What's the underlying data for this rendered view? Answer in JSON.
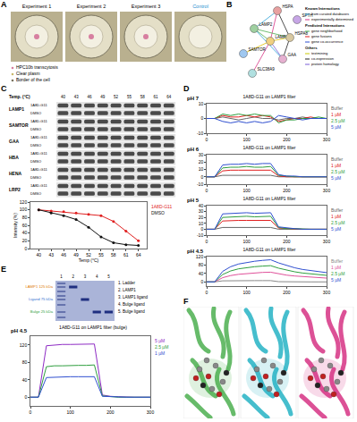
{
  "panel_letters": [
    "A",
    "B",
    "C",
    "D",
    "E",
    "F"
  ],
  "panel_a": {
    "dishes": [
      "Experiment 1",
      "Experiment 2",
      "Experiment 3",
      "Control"
    ],
    "notes": [
      "HPC10b transcytosis",
      "Clear plasm",
      "Border of the cell"
    ]
  },
  "panel_b": {
    "nodes": [
      "HSPA",
      "SPTH",
      "LAMP2",
      "LAMP1",
      "SAMTOR",
      "GAA",
      "SLC38A9",
      "HSPA8"
    ],
    "edges": [
      [
        0,
        2
      ],
      [
        0,
        3
      ],
      [
        0,
        7
      ],
      [
        2,
        3
      ],
      [
        3,
        7
      ],
      [
        3,
        5
      ],
      [
        2,
        5
      ],
      [
        3,
        6
      ],
      [
        7,
        5
      ],
      [
        2,
        7
      ],
      [
        4,
        3
      ]
    ],
    "legend": [
      {
        "head": "Known Interactions",
        "items": [
          "from curated databases",
          "experimentally determined"
        ]
      },
      {
        "head": "Predicted Interactions",
        "items": [
          "gene neighborhood",
          "gene fusions",
          "gene co-occurrence"
        ]
      },
      {
        "head": "Others",
        "items": [
          "textmining",
          "co-expression",
          "protein homology"
        ]
      }
    ]
  },
  "panel_c_blot": {
    "header": "Temp. (°C)",
    "temps": [
      40,
      43,
      46,
      49,
      52,
      55,
      58,
      61,
      64
    ],
    "proteins": [
      "LAMP1",
      "SAMTOR",
      "GAA",
      "HBA",
      "HENA",
      "LRP2"
    ],
    "lanes": [
      "1A8D-G11",
      "DMSO"
    ]
  },
  "panel_e_gel": {
    "lanes": [
      1,
      2,
      3,
      4,
      5
    ],
    "bands": [
      {
        "text": "LAMP1 125 kDa",
        "color": "#e07b00"
      },
      {
        "text": "Ligand 75 kDa",
        "color": "#2f6fd0"
      },
      {
        "text": "Bulge 25 kDa",
        "color": "#2e9e3e"
      }
    ],
    "key": [
      "1. Ladder",
      "2. LAMP1",
      "3. LAMP1 ligand",
      "4. Bulge ligand",
      "5. Bulge ligand"
    ]
  },
  "panel_f": {
    "colors": [
      "#4caf50",
      "#26b3c4",
      "#d63384"
    ]
  },
  "chart_data": [
    {
      "type": "line",
      "panel": "C",
      "marker": "circle",
      "grid": false,
      "legend": "right",
      "x_label": "Temp (°C)",
      "y_label": "Intensity (%)",
      "x": [
        40,
        43,
        46,
        49,
        52,
        55,
        58,
        61,
        64
      ],
      "xlim": [
        38,
        66
      ],
      "xticks": [
        40,
        43,
        46,
        49,
        52,
        55,
        58,
        61,
        64
      ],
      "ylim": [
        0,
        120
      ],
      "yticks": [
        0,
        20,
        40,
        60,
        80,
        100,
        120
      ],
      "series": [
        {
          "name": "1A8D-G11",
          "color": "#e02020",
          "values": [
            100,
            97,
            95,
            92,
            88,
            85,
            70,
            45,
            20
          ]
        },
        {
          "name": "DMSO",
          "color": "#111111",
          "values": [
            100,
            92,
            85,
            75,
            55,
            30,
            15,
            10,
            8
          ]
        }
      ]
    },
    {
      "type": "line",
      "panel": "D",
      "label": "pH 7",
      "title": "1A8D-G11 on LAMP1 filter",
      "grid": false,
      "legend": "right",
      "x": [
        0,
        20,
        40,
        60,
        80,
        100,
        120,
        140,
        160,
        180,
        200,
        220,
        240,
        260,
        280,
        300
      ],
      "xlim": [
        0,
        300
      ],
      "xticks": [
        0,
        100,
        200,
        300
      ],
      "ylim": [
        -10,
        10
      ],
      "yticks": [
        -10,
        0,
        10
      ],
      "series": [
        {
          "name": "Buffer",
          "color": "#666666",
          "values": [
            0,
            0,
            1,
            0,
            -1,
            0,
            1,
            0,
            0,
            -1,
            0,
            0,
            1,
            0,
            0,
            0
          ]
        },
        {
          "name": "1 µM",
          "color": "#e02020",
          "values": [
            0,
            0,
            2,
            1,
            1,
            2,
            1,
            2,
            1,
            -2,
            -1,
            0,
            0,
            1,
            0,
            0
          ]
        },
        {
          "name": "2.5 µM",
          "color": "#2e9e3e",
          "values": [
            0,
            0,
            3,
            2,
            3,
            2,
            3,
            2,
            2,
            -3,
            -1,
            -1,
            0,
            0,
            1,
            0
          ]
        },
        {
          "name": "5 µM",
          "color": "#2f4fd0",
          "values": [
            0,
            0,
            -2,
            -3,
            -2,
            -3,
            -2,
            -3,
            -2,
            2,
            1,
            0,
            -1,
            0,
            0,
            0
          ]
        }
      ]
    },
    {
      "type": "line",
      "panel": "D",
      "label": "pH 6",
      "title": "1A8D-G11 on LAMP1 filter",
      "grid": false,
      "legend": "right",
      "x": [
        0,
        20,
        40,
        60,
        80,
        100,
        120,
        140,
        160,
        180,
        200,
        220,
        240,
        260,
        280,
        300
      ],
      "xlim": [
        0,
        300
      ],
      "xticks": [
        0,
        100,
        200,
        300
      ],
      "ylim": [
        -10,
        30
      ],
      "yticks": [
        -10,
        0,
        10,
        20,
        30
      ],
      "series": [
        {
          "name": "Buffer",
          "color": "#666666",
          "values": [
            0,
            0,
            2,
            2,
            2,
            2,
            2,
            2,
            2,
            0,
            0,
            0,
            0,
            0,
            0,
            0
          ]
        },
        {
          "name": "1 µM",
          "color": "#e02020",
          "values": [
            0,
            0,
            8,
            9,
            9,
            9,
            9,
            9,
            9,
            1,
            0,
            0,
            0,
            0,
            0,
            0
          ]
        },
        {
          "name": "2.5 µM",
          "color": "#2e9e3e",
          "values": [
            0,
            0,
            12,
            13,
            13,
            14,
            13,
            13,
            14,
            2,
            1,
            0,
            0,
            0,
            0,
            0
          ]
        },
        {
          "name": "5 µM",
          "color": "#2f4fd0",
          "values": [
            0,
            0,
            16,
            17,
            17,
            18,
            17,
            18,
            18,
            3,
            1,
            1,
            0,
            0,
            0,
            0
          ]
        }
      ]
    },
    {
      "type": "line",
      "panel": "D",
      "label": "pH 5",
      "title": "1A8D-G11 on LAMP1 filter",
      "grid": false,
      "legend": "right",
      "x": [
        0,
        20,
        40,
        60,
        80,
        100,
        120,
        140,
        160,
        180,
        200,
        220,
        240,
        260,
        280,
        300
      ],
      "xlim": [
        0,
        300
      ],
      "xticks": [
        0,
        100,
        200,
        300
      ],
      "ylim": [
        -10,
        40
      ],
      "yticks": [
        -10,
        0,
        10,
        20,
        30,
        40
      ],
      "series": [
        {
          "name": "Buffer",
          "color": "#666666",
          "values": [
            0,
            0,
            3,
            3,
            3,
            3,
            3,
            3,
            3,
            0,
            0,
            0,
            0,
            0,
            0,
            0
          ]
        },
        {
          "name": "1 µM",
          "color": "#e02020",
          "values": [
            0,
            0,
            14,
            15,
            15,
            15,
            15,
            15,
            15,
            2,
            1,
            0,
            0,
            0,
            0,
            0
          ]
        },
        {
          "name": "2.5 µM",
          "color": "#2e9e3e",
          "values": [
            0,
            0,
            20,
            21,
            21,
            22,
            21,
            21,
            22,
            3,
            1,
            1,
            0,
            0,
            0,
            0
          ]
        },
        {
          "name": "5 µM",
          "color": "#2f4fd0",
          "values": [
            0,
            0,
            26,
            27,
            27,
            28,
            27,
            28,
            28,
            4,
            2,
            1,
            0,
            0,
            0,
            0
          ]
        }
      ]
    },
    {
      "type": "line",
      "panel": "D",
      "label": "pH 4.5",
      "title": "1A8D-G11 on LAMP1 filter",
      "grid": false,
      "legend": "right",
      "x": [
        0,
        20,
        40,
        60,
        80,
        100,
        120,
        140,
        160,
        180,
        200,
        220,
        240,
        260,
        280,
        300
      ],
      "xlim": [
        0,
        300
      ],
      "xticks": [
        0,
        100,
        200,
        300
      ],
      "ylim": [
        -20,
        120
      ],
      "yticks": [
        0,
        40,
        80,
        120
      ],
      "series": [
        {
          "name": "Buffer",
          "color": "#888888",
          "values": [
            0,
            0,
            5,
            6,
            6,
            6,
            6,
            6,
            6,
            1,
            0,
            0,
            0,
            0,
            0,
            0
          ]
        },
        {
          "name": "1 µM",
          "color": "#e0509a",
          "values": [
            0,
            0,
            20,
            30,
            36,
            40,
            43,
            45,
            46,
            38,
            32,
            28,
            25,
            22,
            20,
            18
          ]
        },
        {
          "name": "2.5 µM",
          "color": "#2e9e3e",
          "values": [
            0,
            0,
            35,
            52,
            62,
            68,
            72,
            75,
            77,
            65,
            55,
            48,
            42,
            38,
            34,
            31
          ]
        },
        {
          "name": "5 µM",
          "color": "#2f4fd0",
          "values": [
            0,
            0,
            50,
            72,
            85,
            93,
            98,
            102,
            105,
            90,
            77,
            67,
            59,
            53,
            48,
            44
          ]
        }
      ]
    },
    {
      "type": "line",
      "panel": "E",
      "label": "pH 4.5",
      "title": "1A8D-G11 on LAMP1 filter (bulge)",
      "grid": false,
      "legend": "right",
      "x": [
        0,
        20,
        40,
        60,
        80,
        100,
        120,
        140,
        160,
        180,
        200,
        220,
        240,
        260,
        280,
        300
      ],
      "xlim": [
        0,
        300
      ],
      "xticks": [
        0,
        100,
        200,
        300
      ],
      "ylim": [
        -20,
        140
      ],
      "yticks": [
        0,
        40,
        80,
        120
      ],
      "series": [
        {
          "name": "5 µM",
          "color": "#8e2bc4",
          "values": [
            0,
            0,
            118,
            120,
            121,
            121,
            121,
            122,
            122,
            5,
            2,
            1,
            0,
            0,
            0,
            0
          ]
        },
        {
          "name": "2.5 µM",
          "color": "#2e9e3e",
          "values": [
            0,
            0,
            70,
            72,
            72,
            73,
            73,
            73,
            74,
            3,
            1,
            0,
            0,
            0,
            0,
            0
          ]
        },
        {
          "name": "1 µM",
          "color": "#2f4fd0",
          "values": [
            0,
            0,
            45,
            46,
            46,
            47,
            47,
            47,
            47,
            2,
            1,
            0,
            0,
            0,
            0,
            0
          ]
        }
      ]
    }
  ]
}
